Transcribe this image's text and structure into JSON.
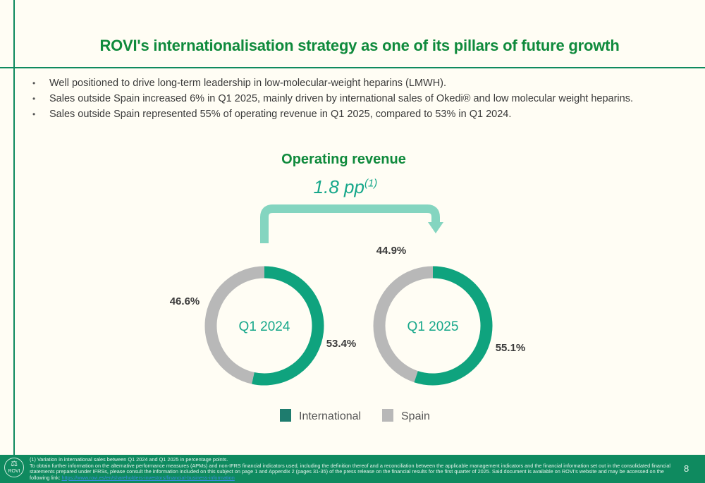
{
  "title": "ROVI's internationalisation strategy as one of its pillars of future growth",
  "bullets": [
    "Well positioned to drive long-term leadership in low-molecular-weight heparins (LMWH).",
    "Sales outside Spain increased 6% in Q1 2025, mainly driven by international sales of Okedi® and low molecular weight heparins.",
    "Sales outside Spain represented 55% of operating revenue in Q1 2025, compared to 53% in Q1 2024."
  ],
  "chart_data": {
    "type": "pie",
    "title": "Operating revenue",
    "annotation": {
      "value": "1.8 pp",
      "footnote_ref": "(1)"
    },
    "series_names": [
      "International",
      "Spain"
    ],
    "colors": {
      "International": "#0fa37e",
      "Spain": "#b8b8b8",
      "arrow": "#84d5c0"
    },
    "donuts": [
      {
        "label": "Q1 2024",
        "International": 53.4,
        "Spain": 46.6,
        "International_label": "53.4%",
        "Spain_label": "46.6%"
      },
      {
        "label": "Q1 2025",
        "International": 55.1,
        "Spain": 44.9,
        "International_label": "55.1%",
        "Spain_label": "44.9%"
      }
    ],
    "legend": {
      "placement": "bottom"
    }
  },
  "footer": {
    "logo_text": "ROVI",
    "note1": "(1) Variation in international sales between Q1 2024 and Q1 2025 in percentage points.",
    "note2": "To obtain further information on the alternative performance measures (APMs) and non-IFRS financial indicators used, including the definition thereof and a reconciliation between the applicable management indicators and the financial information set out in the consolidated financial statements prepared under IFRSs, please consult the information included on this subject on page 1 and Appendix 2 (pages 31-35) of the press release on the financial results for the first quarter of 2025. Said document is available on ROVI's website and may be accessed on the following link:",
    "link": "https://www.rovi.es/en/shareholders-investors/financial-business-information",
    "page_number": "8"
  }
}
